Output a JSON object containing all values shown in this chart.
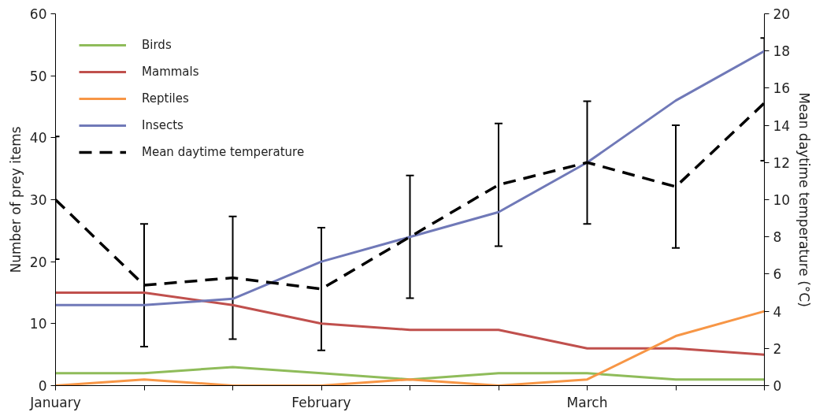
{
  "chart_data": {
    "type": "line",
    "categories": [
      "January",
      null,
      null,
      "February",
      null,
      null,
      "March",
      null,
      null
    ],
    "series": [
      {
        "name": "Birds",
        "color": "#8fbc5a",
        "values": [
          2,
          2,
          3,
          2,
          1,
          2,
          2,
          1,
          1
        ]
      },
      {
        "name": "Mammals",
        "color": "#c0504d",
        "values": [
          15,
          15,
          13,
          10,
          9,
          9,
          6,
          6,
          5
        ]
      },
      {
        "name": "Reptiles",
        "color": "#f79646",
        "values": [
          0,
          1,
          0,
          0,
          1,
          0,
          1,
          8,
          12
        ]
      },
      {
        "name": "Insects",
        "color": "#7079b8",
        "values": [
          13,
          13,
          14,
          20,
          24,
          28,
          36,
          46,
          54
        ]
      },
      {
        "name": "Mean daytime temperature",
        "color": "#000000",
        "axis": "y2",
        "line_style": "dashed",
        "values": [
          10.0,
          5.4,
          5.8,
          5.2,
          8.0,
          10.8,
          12.0,
          10.7,
          15.2
        ],
        "errors": [
          [
            6.8,
            13.4
          ],
          [
            2.1,
            8.7
          ],
          [
            2.5,
            9.1
          ],
          [
            1.9,
            8.5
          ],
          [
            4.7,
            11.3
          ],
          [
            7.5,
            14.1
          ],
          [
            8.7,
            15.3
          ],
          [
            7.4,
            14.0
          ],
          [
            12.1,
            18.7
          ]
        ]
      }
    ],
    "ylabel": "Number of prey items",
    "y2label": "Mean daytime temperature (°C)",
    "ylim": [
      0,
      60
    ],
    "yticks": [
      0,
      10,
      20,
      30,
      40,
      50,
      60
    ],
    "y2lim": [
      0,
      20
    ],
    "y2ticks": [
      0,
      2,
      4,
      6,
      8,
      10,
      12,
      14,
      16,
      18,
      20
    ],
    "legend": "top left",
    "grid": false,
    "marker": "none",
    "line_style": "solid"
  }
}
